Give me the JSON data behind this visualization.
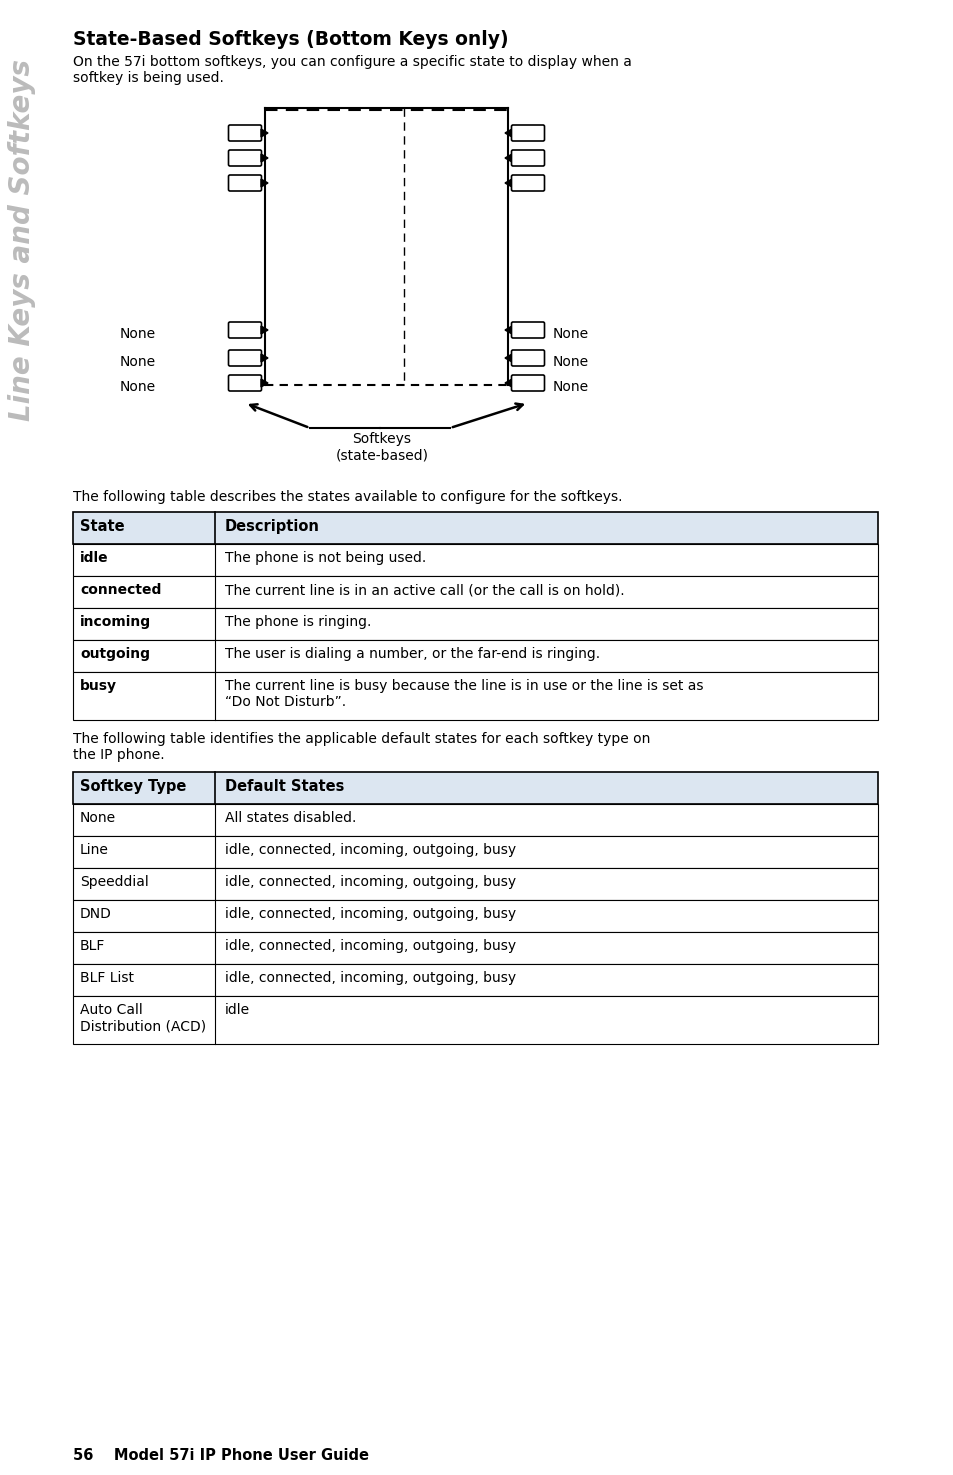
{
  "title": "State-Based Softkeys (Bottom Keys only)",
  "intro_text": "On the 57i bottom softkeys, you can configure a specific state to display when a\nsoftkey is being used.",
  "sidebar_text": "Line Keys and Softkeys",
  "table1_header": [
    "State",
    "Description"
  ],
  "table1_header_bg": "#dce6f1",
  "table1_rows": [
    [
      "idle",
      "The phone is not being used."
    ],
    [
      "connected",
      "The current line is in an active call (or the call is on hold)."
    ],
    [
      "incoming",
      "The phone is ringing."
    ],
    [
      "outgoing",
      "The user is dialing a number, or the far-end is ringing."
    ],
    [
      "busy",
      "The current line is busy because the line is in use or the line is set as\n“Do Not Disturb”."
    ]
  ],
  "table1_intro": "The following table describes the states available to configure for the softkeys.",
  "table2_intro": "The following table identifies the applicable default states for each softkey type on\nthe IP phone.",
  "table2_header": [
    "Softkey Type",
    "Default States"
  ],
  "table2_header_bg": "#dce6f1",
  "table2_rows": [
    [
      "None",
      "All states disabled."
    ],
    [
      "Line",
      "idle, connected, incoming, outgoing, busy"
    ],
    [
      "Speeddial",
      "idle, connected, incoming, outgoing, busy"
    ],
    [
      "DND",
      "idle, connected, incoming, outgoing, busy"
    ],
    [
      "BLF",
      "idle, connected, incoming, outgoing, busy"
    ],
    [
      "BLF List",
      "idle, connected, incoming, outgoing, busy"
    ],
    [
      "Auto Call\nDistribution (ACD)",
      "idle"
    ]
  ],
  "footer_text": "56    Model 57i IP Phone User Guide",
  "bg_color": "#ffffff",
  "sidebar_color": "#bbbbbb",
  "text_color": "#000000"
}
